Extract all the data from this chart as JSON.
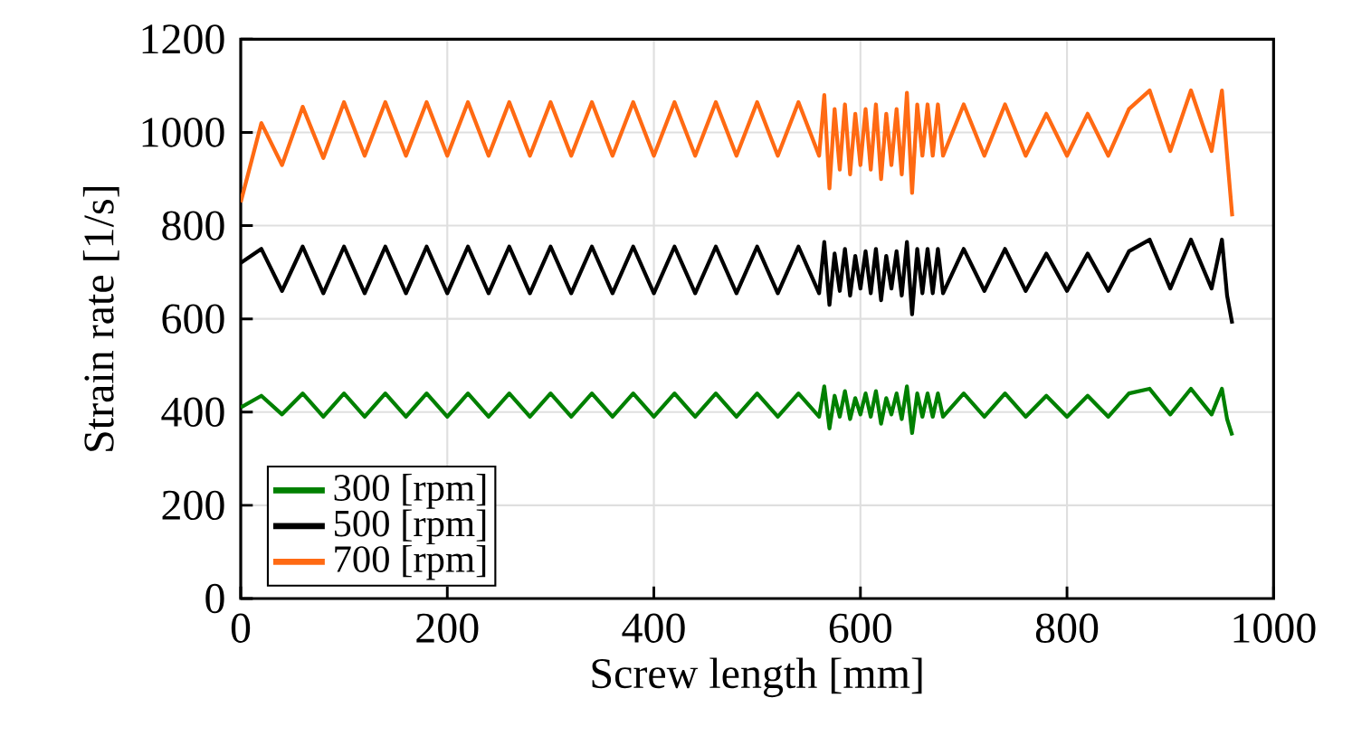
{
  "chart_data": {
    "type": "line",
    "xlabel": "Screw length [mm]",
    "ylabel": "Strain rate [1/s]",
    "xlim": [
      0,
      1000
    ],
    "ylim": [
      0,
      1200
    ],
    "xticks": [
      0,
      200,
      400,
      600,
      800,
      1000
    ],
    "yticks": [
      0,
      200,
      400,
      600,
      800,
      1000,
      1200
    ],
    "grid": true,
    "legend": "bottom left",
    "marker": "none",
    "line_style": "solid",
    "x": [
      0,
      20,
      40,
      60,
      80,
      100,
      120,
      140,
      160,
      180,
      200,
      220,
      240,
      260,
      280,
      300,
      320,
      340,
      360,
      380,
      400,
      420,
      440,
      460,
      480,
      500,
      520,
      540,
      560,
      565,
      570,
      575,
      580,
      585,
      590,
      595,
      600,
      605,
      610,
      615,
      620,
      625,
      630,
      635,
      640,
      645,
      650,
      655,
      660,
      665,
      670,
      675,
      680,
      700,
      720,
      740,
      760,
      780,
      800,
      820,
      840,
      860,
      880,
      900,
      920,
      940,
      950,
      955,
      960
    ],
    "series": [
      {
        "name": "300 [rpm]",
        "color": "#008000",
        "values": [
          410,
          435,
          395,
          440,
          390,
          440,
          390,
          440,
          390,
          440,
          390,
          440,
          390,
          440,
          390,
          440,
          390,
          440,
          390,
          440,
          390,
          440,
          390,
          440,
          390,
          440,
          390,
          440,
          390,
          455,
          365,
          435,
          390,
          445,
          385,
          430,
          395,
          440,
          390,
          445,
          375,
          430,
          395,
          440,
          385,
          455,
          355,
          440,
          390,
          440,
          390,
          440,
          390,
          440,
          390,
          440,
          390,
          435,
          390,
          435,
          390,
          440,
          450,
          395,
          450,
          395,
          450,
          385,
          350
        ]
      },
      {
        "name": "500 [rpm]",
        "color": "#000000",
        "values": [
          720,
          750,
          660,
          755,
          655,
          755,
          655,
          755,
          655,
          755,
          655,
          755,
          655,
          755,
          655,
          755,
          655,
          755,
          655,
          755,
          655,
          755,
          655,
          755,
          655,
          755,
          655,
          755,
          655,
          765,
          630,
          740,
          660,
          750,
          650,
          735,
          665,
          745,
          655,
          750,
          640,
          735,
          665,
          745,
          650,
          765,
          610,
          750,
          655,
          750,
          655,
          750,
          655,
          750,
          660,
          750,
          660,
          740,
          660,
          740,
          660,
          745,
          770,
          665,
          770,
          665,
          770,
          650,
          590
        ]
      },
      {
        "name": "700 [rpm]",
        "color": "#ff6a13",
        "values": [
          850,
          1020,
          930,
          1055,
          945,
          1065,
          950,
          1065,
          950,
          1065,
          950,
          1065,
          950,
          1065,
          950,
          1065,
          950,
          1065,
          950,
          1065,
          950,
          1065,
          950,
          1065,
          950,
          1065,
          950,
          1065,
          950,
          1080,
          880,
          1050,
          920,
          1060,
          910,
          1040,
          930,
          1050,
          920,
          1060,
          900,
          1040,
          930,
          1050,
          910,
          1085,
          870,
          1060,
          950,
          1060,
          950,
          1060,
          950,
          1060,
          950,
          1060,
          950,
          1040,
          950,
          1040,
          950,
          1050,
          1090,
          960,
          1090,
          960,
          1090,
          950,
          820
        ]
      }
    ]
  }
}
